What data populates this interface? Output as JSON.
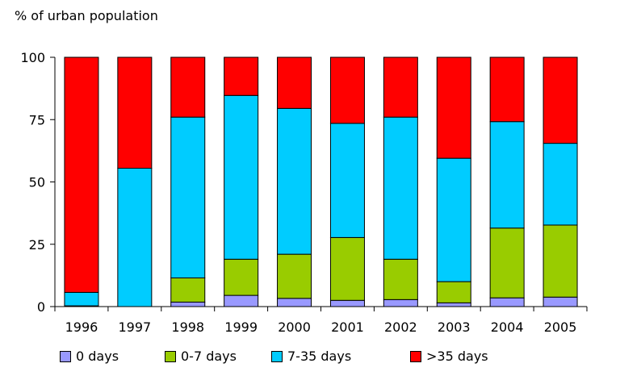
{
  "chart_data": {
    "type": "bar",
    "stacked": true,
    "title": "",
    "ylabel": "% of urban population",
    "xlabel": "",
    "ylim": [
      0,
      100
    ],
    "yticks": [
      "0",
      "25",
      "50",
      "75",
      "100"
    ],
    "categories": [
      "1996",
      "1997",
      "1998",
      "1999",
      "2000",
      "2001",
      "2002",
      "2003",
      "2004",
      "2005"
    ],
    "legend_position": "bottom",
    "series": [
      {
        "name": "0 days",
        "color": "#9999ff",
        "values": [
          0.3,
          0,
          1.8,
          4.5,
          3.3,
          2.5,
          2.8,
          1.5,
          3.5,
          3.8
        ]
      },
      {
        "name": "0-7 days",
        "color": "#99cc00",
        "values": [
          0,
          0,
          9.7,
          14.5,
          17.7,
          25.2,
          16.2,
          8.5,
          28.0,
          28.9
        ]
      },
      {
        "name": "7-35 days",
        "color": "#00ccff",
        "values": [
          5.4,
          55.5,
          64.5,
          65.7,
          58.5,
          45.8,
          57.0,
          49.5,
          42.7,
          32.8
        ]
      },
      {
        "name": ">35 days",
        "color": "#ff0000",
        "values": [
          94.3,
          44.5,
          24.0,
          15.3,
          20.5,
          26.5,
          24.0,
          40.5,
          25.8,
          34.5
        ]
      }
    ]
  }
}
